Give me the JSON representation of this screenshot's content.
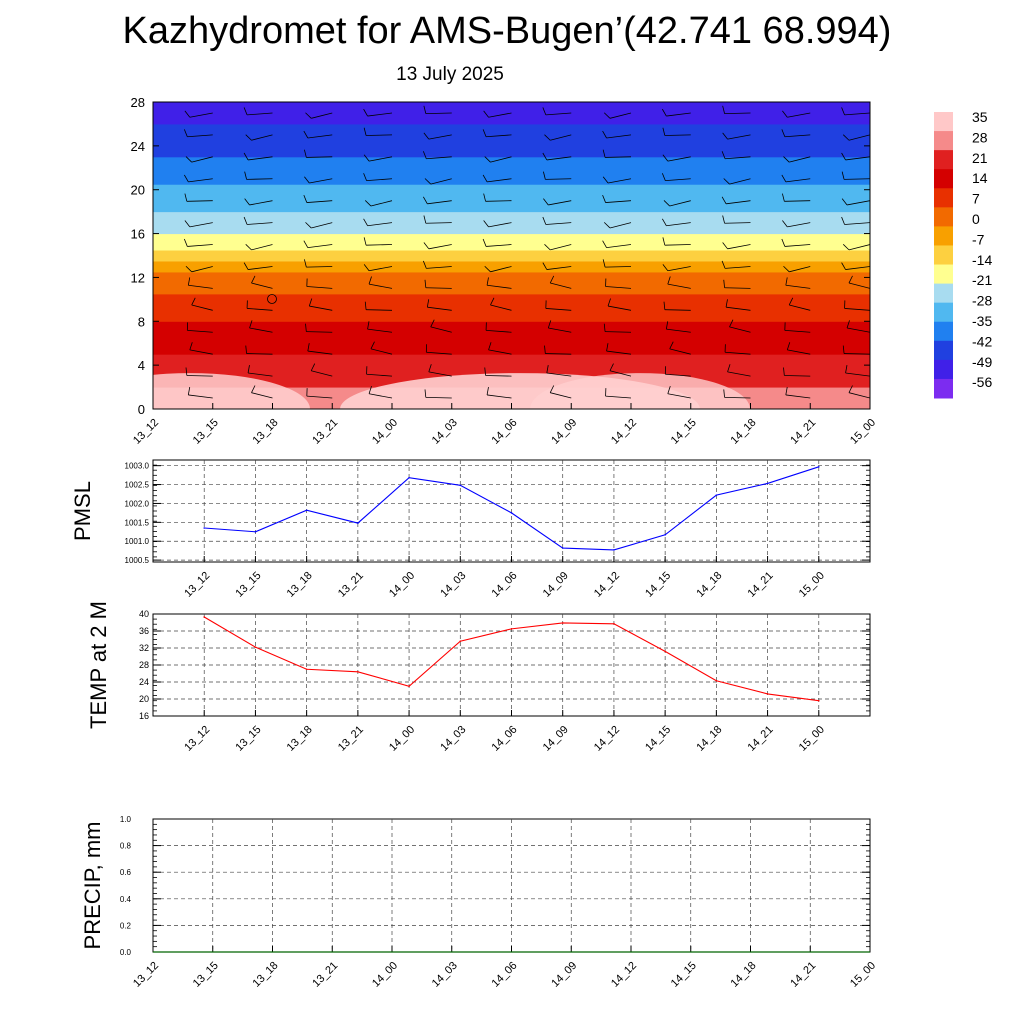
{
  "title": "Kazhydromet for AMS-Bugen’(42.741 68.994)",
  "subtitle": "13 July 2025",
  "chart_data": [
    {
      "type": "heatmap",
      "description_type": "time-height cross-section with wind barbs",
      "x_ticks": [
        "13_12",
        "13_15",
        "13_18",
        "13_21",
        "14_00",
        "14_03",
        "14_06",
        "14_09",
        "14_12",
        "14_15",
        "14_18",
        "14_21",
        "15_00"
      ],
      "y_ticks": [
        0,
        4,
        8,
        12,
        16,
        20,
        24,
        28
      ],
      "ylim": [
        0,
        28
      ],
      "colorbar_labels": [
        "35",
        "28",
        "21",
        "14",
        "7",
        "0",
        "-7",
        "-14",
        "-21",
        "-28",
        "-35",
        "-42",
        "-49",
        "-56"
      ],
      "colorbar_colors": [
        "#ffc8c8",
        "#f58a8a",
        "#e02020",
        "#d40000",
        "#e83000",
        "#f26a00",
        "#f8a000",
        "#fdd040",
        "#ffff90",
        "#a8dcf0",
        "#50b8f0",
        "#2080f0",
        "#2040e0",
        "#4020e8",
        "#7c2cf0"
      ],
      "band_levels_km": [
        0,
        2,
        5,
        8,
        10.5,
        12.5,
        13.5,
        14.5,
        16,
        18,
        20.5,
        23,
        26,
        28
      ]
    },
    {
      "type": "line",
      "ylabel": "PMSL",
      "x": [
        "13_12",
        "13_15",
        "13_18",
        "13_21",
        "14_00",
        "14_03",
        "14_06",
        "14_09",
        "14_12",
        "14_15",
        "14_18",
        "14_21",
        "15_00"
      ],
      "y_ticks": [
        "1000.5",
        "1001.0",
        "1001.5",
        "1002.0",
        "1002.5",
        "1003.0"
      ],
      "ylim": [
        1000.45,
        1003.15
      ],
      "series": [
        {
          "values": [
            1001.35,
            1001.25,
            1001.82,
            1001.48,
            1002.68,
            1002.48,
            1001.75,
            1000.82,
            1000.77,
            1001.17,
            1002.22,
            1002.53,
            1002.97
          ],
          "color": "#0000ff"
        }
      ]
    },
    {
      "type": "line",
      "ylabel": "TEMP at 2 M",
      "x": [
        "13_12",
        "13_15",
        "13_18",
        "13_21",
        "14_00",
        "14_03",
        "14_06",
        "14_09",
        "14_12",
        "14_15",
        "14_18",
        "14_21",
        "15_00"
      ],
      "y_ticks": [
        "16",
        "20",
        "24",
        "28",
        "32",
        "36",
        "40"
      ],
      "ylim": [
        16,
        40
      ],
      "series": [
        {
          "values": [
            39.3,
            32.2,
            27.0,
            26.4,
            23.0,
            33.6,
            36.5,
            37.9,
            37.7,
            31.2,
            24.3,
            21.2,
            19.6
          ],
          "color": "#ff0000"
        }
      ]
    },
    {
      "type": "line",
      "ylabel": "PRECIP, mm",
      "x": [
        "13_12",
        "13_15",
        "13_18",
        "13_21",
        "14_00",
        "14_03",
        "14_06",
        "14_09",
        "14_12",
        "14_15",
        "14_18",
        "14_21",
        "15_00"
      ],
      "y_ticks": [
        "0.0",
        "0.2",
        "0.4",
        "0.6",
        "0.8",
        "1.0"
      ],
      "ylim": [
        0,
        1
      ],
      "series": [
        {
          "values": [
            0,
            0,
            0,
            0,
            0,
            0,
            0,
            0,
            0,
            0,
            0,
            0,
            0
          ],
          "color": "#006400"
        }
      ]
    }
  ]
}
